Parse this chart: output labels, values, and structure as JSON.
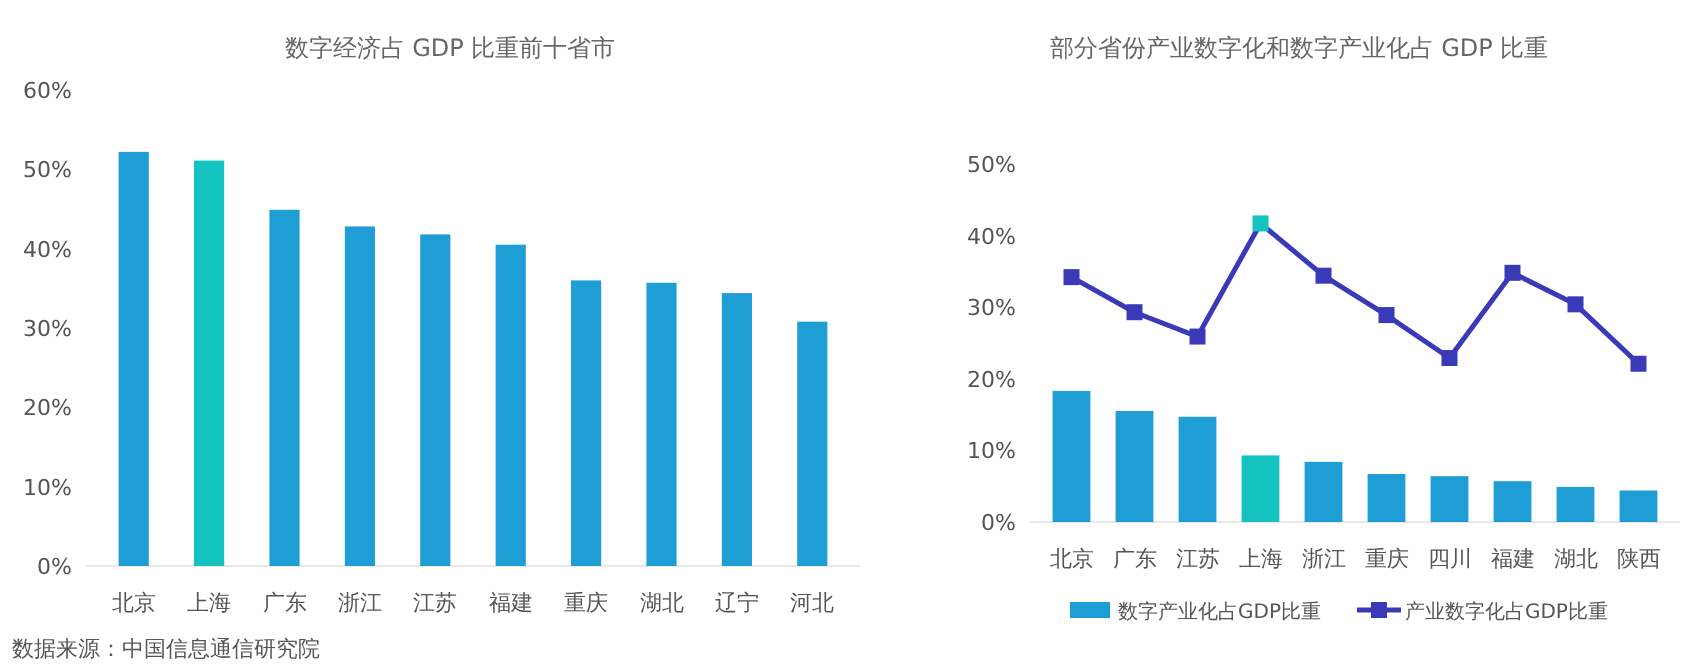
{
  "chart_data": [
    {
      "type": "bar",
      "title": "数字经济占 GDP 比重前十省市",
      "categories": [
        "北京",
        "上海",
        "广东",
        "浙江",
        "江苏",
        "福建",
        "重庆",
        "湖北",
        "辽宁",
        "河北"
      ],
      "series": [
        {
          "colors": [
            "#1f9ed6",
            "#14c3c0",
            "#1f9ed6",
            "#1f9ed6",
            "#1f9ed6",
            "#1f9ed6",
            "#1f9ed6",
            "#1f9ed6",
            "#1f9ed6",
            "#1f9ed6"
          ],
          "values": [
            52.2,
            51.1,
            44.9,
            42.8,
            41.8,
            40.5,
            36.0,
            35.7,
            34.4,
            30.8
          ]
        }
      ],
      "ylim": [
        0,
        60
      ],
      "yticks": [
        {
          "value": 0,
          "label": "0%"
        },
        {
          "value": 10,
          "label": "10%"
        },
        {
          "value": 20,
          "label": "20%"
        },
        {
          "value": 30,
          "label": "30%"
        },
        {
          "value": 40,
          "label": "40%"
        },
        {
          "value": 50,
          "label": "50%"
        },
        {
          "value": 60,
          "label": "60%"
        }
      ],
      "grid": false,
      "legend": false,
      "annotations": [
        "数据来源：中国信息通信研究院"
      ]
    },
    {
      "type": "bar",
      "title": "部分省份产业数字化和数字产业化占 GDP 比重",
      "categories": [
        "北京",
        "广东",
        "江苏",
        "上海",
        "浙江",
        "重庆",
        "四川",
        "福建",
        "湖北",
        "陕西"
      ],
      "series": [
        {
          "name": "数字产业化占GDP比重",
          "color": "#1f9ed6",
          "colors": [
            "#1f9ed6",
            "#1f9ed6",
            "#1f9ed6",
            "#14c3c0",
            "#1f9ed6",
            "#1f9ed6",
            "#1f9ed6",
            "#1f9ed6",
            "#1f9ed6",
            "#1f9ed6"
          ],
          "values": [
            18.3,
            15.5,
            14.7,
            9.3,
            8.4,
            6.7,
            6.4,
            5.7,
            4.9,
            4.4
          ]
        },
        {
          "type": "line",
          "name": "产业数字化占GDP比重",
          "color": "#3a3ab8",
          "marker": "square",
          "colors": [
            "#3a3ab8",
            "#3a3ab8",
            "#3a3ab8",
            "#14c3c0",
            "#3a3ab8",
            "#3a3ab8",
            "#3a3ab8",
            "#3a3ab8",
            "#3a3ab8",
            "#3a3ab8"
          ],
          "values": [
            34.2,
            29.3,
            25.9,
            41.7,
            34.4,
            28.9,
            22.9,
            34.8,
            30.4,
            22.1
          ]
        }
      ],
      "ylim": [
        0,
        50
      ],
      "yticks": [
        {
          "value": 0,
          "label": "0%"
        },
        {
          "value": 10,
          "label": "10%"
        },
        {
          "value": 20,
          "label": "20%"
        },
        {
          "value": 30,
          "label": "30%"
        },
        {
          "value": 40,
          "label": "40%"
        },
        {
          "value": 50,
          "label": "50%"
        }
      ],
      "grid": false,
      "legend": "bottom"
    }
  ]
}
